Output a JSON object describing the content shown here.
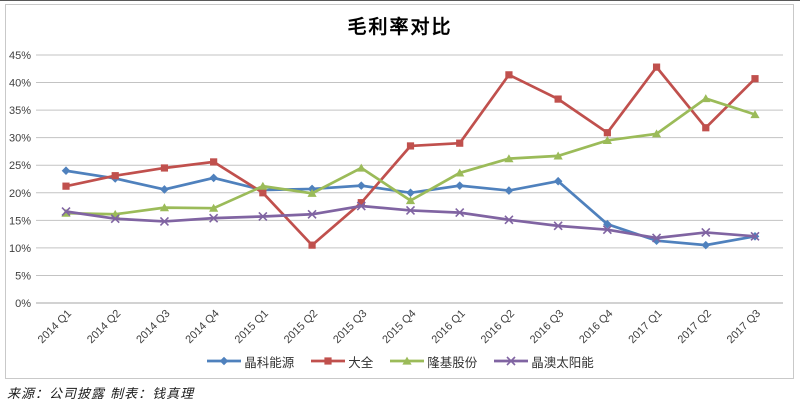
{
  "chart": {
    "title": "毛利率对比",
    "source_note": "来源：公司披露  制表：钱真理",
    "colors": {
      "grid": "#c3c3c3",
      "zero_axis": "#a6a6a6",
      "axis_text": "#404040",
      "frame_border": "#c9c9c9",
      "top_edge": "#595959"
    }
  },
  "chart_data": {
    "type": "line",
    "title": "毛利率对比",
    "source_note": "来源：公司披露  制表：钱真理",
    "categories": [
      "2014 Q1",
      "2014 Q2",
      "2014 Q3",
      "2014 Q4",
      "2015 Q1",
      "2015 Q2",
      "2015 Q3",
      "2015 Q4",
      "2016 Q1",
      "2016 Q2",
      "2016 Q3",
      "2016 Q4",
      "2017 Q1",
      "2017 Q2",
      "2017 Q3"
    ],
    "series": [
      {
        "name": "晶科能源",
        "color": "#4F81BD",
        "marker": "diamond",
        "values": [
          24.0,
          22.6,
          20.6,
          22.7,
          20.5,
          20.7,
          21.3,
          20.0,
          21.3,
          20.4,
          22.1,
          14.3,
          11.3,
          10.5,
          12.1
        ]
      },
      {
        "name": "大全",
        "color": "#C0504D",
        "marker": "square",
        "values": [
          21.2,
          23.1,
          24.5,
          25.6,
          20.0,
          10.5,
          18.2,
          28.5,
          29.0,
          41.4,
          37.0,
          30.9,
          42.8,
          31.8,
          40.7
        ]
      },
      {
        "name": "隆基股份",
        "color": "#9BBB59",
        "marker": "triangle",
        "values": [
          16.3,
          16.1,
          17.3,
          17.2,
          21.2,
          19.9,
          24.5,
          18.6,
          23.6,
          26.2,
          26.7,
          29.5,
          30.7,
          37.1,
          34.2
        ]
      },
      {
        "name": "晶澳太阳能",
        "color": "#8064A2",
        "marker": "x",
        "values": [
          16.6,
          15.3,
          14.8,
          15.4,
          15.7,
          16.1,
          17.6,
          16.8,
          16.4,
          15.1,
          14.0,
          13.3,
          11.8,
          12.8,
          12.1
        ]
      }
    ],
    "ylim": [
      0,
      45
    ],
    "ytick_step": 5,
    "ytick_labels": [
      "0%",
      "5%",
      "10%",
      "15%",
      "20%",
      "25%",
      "30%",
      "35%",
      "40%",
      "45%"
    ],
    "grid": true,
    "legend_position": "bottom",
    "legend_entries": [
      "晶科能源",
      "大全",
      "隆基股份",
      "晶澳太阳能"
    ]
  }
}
